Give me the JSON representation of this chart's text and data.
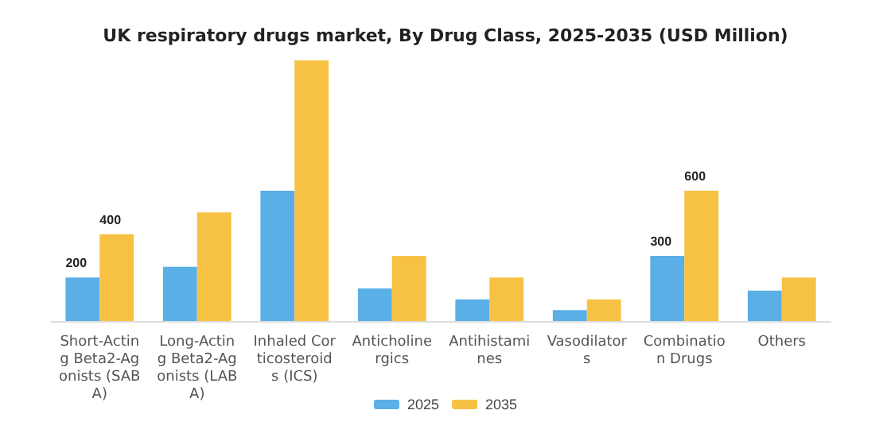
{
  "chart_data": {
    "type": "bar",
    "title": "UK respiratory drugs market, By Drug Class, 2025-2035 (USD Million)",
    "categories": [
      "Short-Acting Beta2-Agonists (SABA)",
      "Long-Acting Beta2-Agonists (LABA)",
      "Inhaled Corticosteroids (ICS)",
      "Anticholinergics",
      "Antihistamines",
      "Vasodilators",
      "Combination Drugs",
      "Others"
    ],
    "series": [
      {
        "name": "2025",
        "color": "#5aafe6",
        "values": [
          200,
          250,
          600,
          150,
          100,
          50,
          300,
          140
        ],
        "value_labels": [
          "200",
          null,
          null,
          null,
          null,
          null,
          "300",
          null
        ]
      },
      {
        "name": "2035",
        "color": "#f7c244",
        "values": [
          400,
          500,
          1200,
          300,
          200,
          100,
          600,
          200
        ],
        "value_labels": [
          "400",
          null,
          null,
          null,
          null,
          null,
          "600",
          null
        ]
      }
    ],
    "ylim": [
      0,
      1200
    ],
    "legend": "bottom"
  }
}
